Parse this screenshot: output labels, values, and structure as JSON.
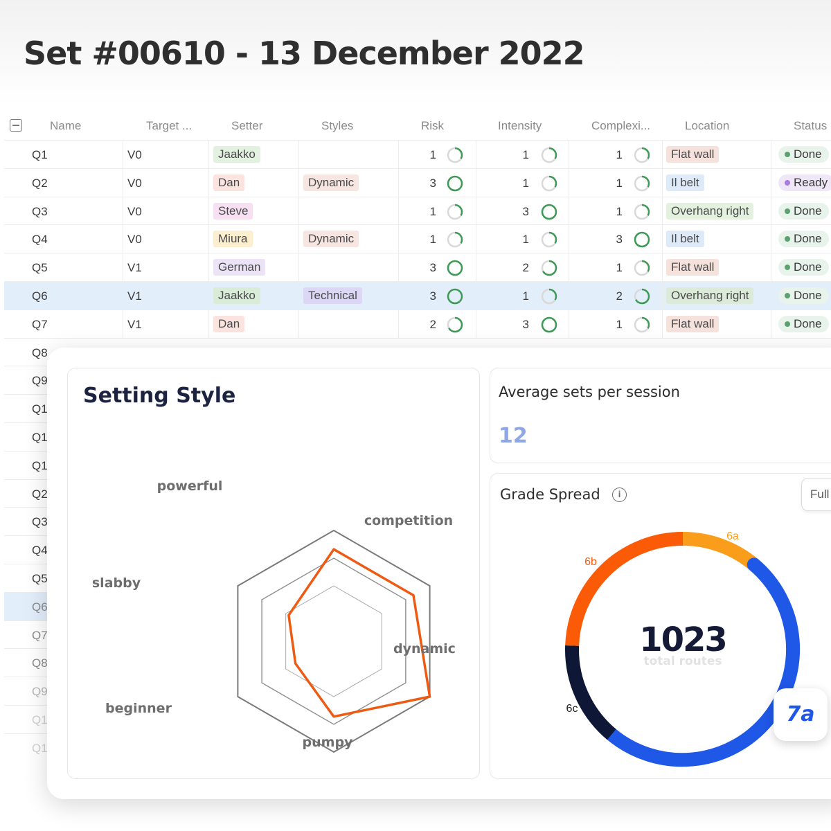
{
  "page": {
    "title": "Set #00610 - 13 December 2022"
  },
  "table": {
    "headers": [
      "Name",
      "Target ...",
      "Setter",
      "Styles",
      "Risk",
      "Intensity",
      "Complexi...",
      "Location",
      "Status"
    ],
    "rows": [
      {
        "name": "Q1",
        "target": "V0",
        "setter": "Jaakko",
        "setter_color": "#e3f1e0",
        "style": "",
        "risk": "1",
        "intensity": "1",
        "complexity": "1",
        "location": "Flat wall",
        "location_color": "#f6e2dc",
        "status": "Done"
      },
      {
        "name": "Q2",
        "target": "V0",
        "setter": "Dan",
        "setter_color": "#fbe3df",
        "style": "Dynamic",
        "style_color": "#f6e5e0",
        "risk": "3",
        "intensity": "1",
        "complexity": "1",
        "location": "Il belt",
        "location_color": "#dfeaf8",
        "status": "Ready"
      },
      {
        "name": "Q3",
        "target": "V0",
        "setter": "Steve",
        "setter_color": "#f6e0f1",
        "style": "",
        "risk": "1",
        "intensity": "3",
        "complexity": "1",
        "location": "Overhang right",
        "location_color": "#e4f1df",
        "status": "Done"
      },
      {
        "name": "Q4",
        "target": "V0",
        "setter": "Miura",
        "setter_color": "#fbefcf",
        "style": "Dynamic",
        "style_color": "#f6e5e0",
        "risk": "1",
        "intensity": "1",
        "complexity": "3",
        "location": "Il belt",
        "location_color": "#dfeaf8",
        "status": "Done"
      },
      {
        "name": "Q5",
        "target": "V1",
        "setter": "German",
        "setter_color": "#ece3f6",
        "style": "",
        "risk": "3",
        "intensity": "2",
        "complexity": "1",
        "location": "Flat wall",
        "location_color": "#f6e2dc",
        "status": "Done"
      },
      {
        "name": "Q6",
        "target": "V1",
        "setter": "Jaakko",
        "setter_color": "#d9ecd7",
        "style": "Technical",
        "style_color": "#dcd7f4",
        "risk": "3",
        "intensity": "1",
        "complexity": "2",
        "location": "Overhang right",
        "location_color": "#dcebd9",
        "status": "Done"
      },
      {
        "name": "Q7",
        "target": "V1",
        "setter": "Dan",
        "setter_color": "#fbe3df",
        "style": "",
        "risk": "2",
        "intensity": "3",
        "complexity": "1",
        "location": "Flat wall",
        "location_color": "#f6e2dc",
        "status": "Done"
      }
    ],
    "hidden_rows": [
      "Q8",
      "Q9",
      "Q1",
      "Q1",
      "Q1",
      "Q2",
      "Q3",
      "Q4",
      "Q5",
      "Q6",
      "Q7",
      "Q8",
      "Q9",
      "Q1",
      "Q1"
    ]
  },
  "setting_style": {
    "title": "Setting Style",
    "axes": [
      "powerful",
      "competition",
      "dynamic",
      "pumpy",
      "beginner",
      "slabby"
    ],
    "values": [
      0.83,
      0.83,
      1.0,
      0.68,
      0.4,
      0.47
    ],
    "line_color": "#ee5a12"
  },
  "avg_sets": {
    "title": "Average sets per session",
    "value": "12"
  },
  "grade_spread": {
    "title": "Grade Spread",
    "info_icon": "info-icon",
    "button_label": "Full",
    "total": "1023",
    "total_label": "total routes",
    "selected_grade": "7a",
    "segments": [
      {
        "label": "6a",
        "color": "#fa9d1b",
        "start": 0,
        "end": 40
      },
      {
        "label": "7a",
        "color": "#1f57e7",
        "start": 40,
        "end": 220
      },
      {
        "label": "6c",
        "color": "#0e1736",
        "start": 220,
        "end": 272
      },
      {
        "label": "6b",
        "color": "#fb5b07",
        "start": 272,
        "end": 360
      }
    ]
  }
}
